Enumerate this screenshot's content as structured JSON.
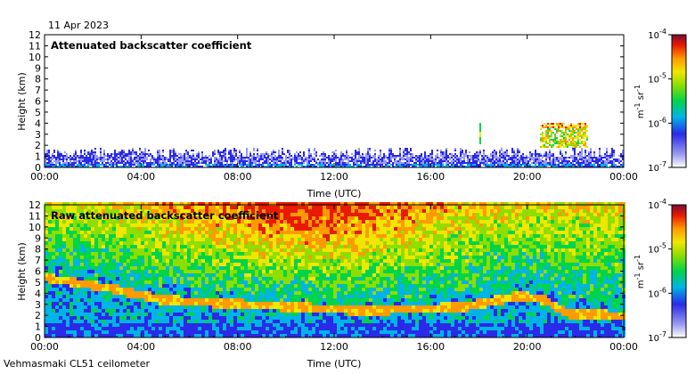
{
  "date": "11 Apr 2023",
  "footer": "Vehmasmaki CL51 ceilometer",
  "chart_data": [
    {
      "type": "heatmap",
      "title": "Attenuated backscatter coefficient",
      "xlabel": "Time (UTC)",
      "ylabel": "Height (km)",
      "xticks": [
        "00:00",
        "04:00",
        "08:00",
        "12:00",
        "16:00",
        "20:00",
        "00:00"
      ],
      "xlim_hours": [
        0,
        24
      ],
      "ylim": [
        0,
        12
      ],
      "yticks": [
        "0",
        "1",
        "2",
        "3",
        "4",
        "5",
        "6",
        "7",
        "8",
        "9",
        "10",
        "11",
        "12"
      ],
      "colorbar": {
        "scale": "log",
        "ticks": [
          {
            "base": "10",
            "exp": "-7"
          },
          {
            "base": "10",
            "exp": "-6"
          },
          {
            "base": "10",
            "exp": "-5"
          },
          {
            "base": "10",
            "exp": "-4"
          }
        ],
        "unit": {
          "m": "m",
          "m_exp": "-1",
          "sr": "sr",
          "sr_exp": "-1"
        }
      }
    },
    {
      "type": "heatmap",
      "title": "Raw attenuated backscatter coefficient",
      "xlabel": "Time (UTC)",
      "ylabel": "Height (km)",
      "xticks": [
        "00:00",
        "04:00",
        "08:00",
        "12:00",
        "16:00",
        "20:00",
        "00:00"
      ],
      "xlim_hours": [
        0,
        24
      ],
      "ylim": [
        0,
        12
      ],
      "yticks": [
        "0",
        "1",
        "2",
        "3",
        "4",
        "5",
        "6",
        "7",
        "8",
        "9",
        "10",
        "11",
        "12"
      ],
      "colorbar": {
        "scale": "log",
        "ticks": [
          {
            "base": "10",
            "exp": "-7"
          },
          {
            "base": "10",
            "exp": "-6"
          },
          {
            "base": "10",
            "exp": "-5"
          },
          {
            "base": "10",
            "exp": "-4"
          }
        ],
        "unit": {
          "m": "m",
          "m_exp": "-1",
          "sr": "sr",
          "sr_exp": "-1"
        }
      }
    }
  ]
}
